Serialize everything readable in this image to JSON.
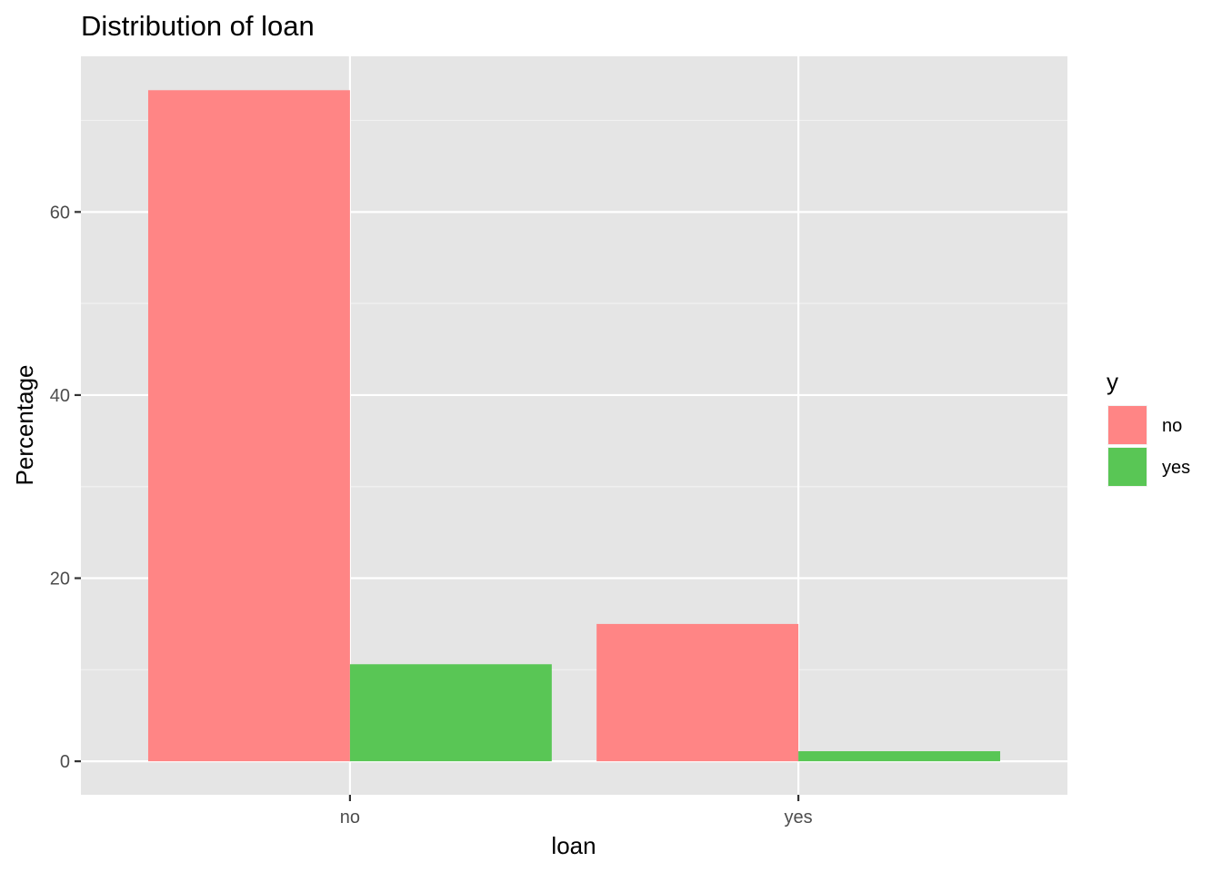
{
  "chart_data": {
    "type": "bar",
    "title": "Distribution of loan",
    "xlabel": "loan",
    "ylabel": "Percentage",
    "categories": [
      "no",
      "yes"
    ],
    "series": [
      {
        "name": "no",
        "color": "#F8766D",
        "values": [
          73.3,
          15.0
        ]
      },
      {
        "name": "yes",
        "color": "#00BA38",
        "values": [
          10.6,
          1.1
        ]
      }
    ],
    "ylim": [
      -3.66,
      77.0
    ],
    "yticks": [
      0,
      20,
      40,
      60
    ],
    "ytick_labels": [
      "0",
      "20",
      "40",
      "60"
    ],
    "grid": true,
    "legend": {
      "title": "y",
      "position": "right",
      "items": [
        {
          "label": "no",
          "color": "#FF8585"
        },
        {
          "label": "yes",
          "color": "#59C655"
        }
      ]
    }
  }
}
